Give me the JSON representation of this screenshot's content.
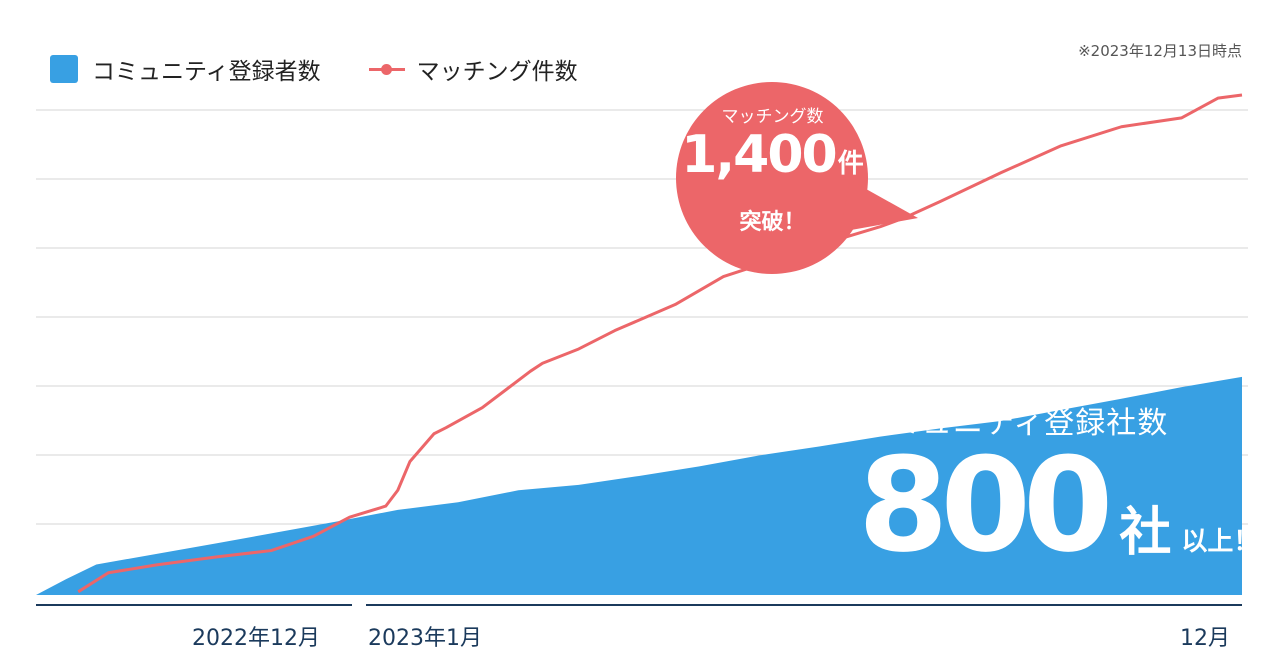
{
  "legend": {
    "registrants_label": "コミュニティ登録者数",
    "matches_label": "マッチング件数"
  },
  "as_of": "※2023年12月13日時点",
  "callout": {
    "line1": "マッチング数",
    "number": "1,400",
    "unit": "件",
    "line3": "突破！"
  },
  "highlight": {
    "title": "コミュニティ登録社数",
    "number": "800",
    "unit": "社",
    "suffix": "以上！"
  },
  "x_labels": {
    "label_2022_12": "2022年12月",
    "label_2023_01": "2023年1月",
    "label_2023_12": "12月"
  },
  "colors": {
    "area": "#38a0e3",
    "line": "#ec6669",
    "grid": "#d4d4d4",
    "axis": "#1b3a5c"
  },
  "chart_data": {
    "type": "area",
    "x_axis": "time (continuous, no tick values shown)",
    "y_axis": "no tick labels shown",
    "grid": true,
    "legend_placement": "top-left",
    "series": [
      {
        "name": "コミュニティ登録者数",
        "type": "area",
        "x": [
          0,
          0.025,
          0.05,
          0.15,
          0.25,
          0.3,
          0.35,
          0.4,
          0.45,
          0.5,
          0.55,
          0.6,
          0.65,
          0.7,
          0.75,
          0.8,
          0.85,
          0.9,
          0.95,
          1.0
        ],
        "values": [
          0,
          50,
          96,
          163,
          232,
          268,
          292,
          330,
          347,
          375,
          405,
          440,
          468,
          499,
          525,
          548,
          583,
          618,
          655,
          687
        ]
      },
      {
        "name": "マッチング件数",
        "type": "line",
        "x": [
          0.035,
          0.06,
          0.1,
          0.15,
          0.195,
          0.23,
          0.26,
          0.29,
          0.3,
          0.31,
          0.33,
          0.34,
          0.37,
          0.41,
          0.42,
          0.45,
          0.48,
          0.53,
          0.57,
          0.6,
          0.65,
          0.7,
          0.72,
          0.75,
          0.8,
          0.85,
          0.9,
          0.95,
          0.98,
          1.0
        ],
        "values": [
          10,
          70,
          95,
          120,
          140,
          185,
          245,
          280,
          330,
          420,
          508,
          527,
          590,
          705,
          730,
          775,
          833,
          915,
          1003,
          1040,
          1103,
          1160,
          1188,
          1240,
          1330,
          1415,
          1475,
          1503,
          1565,
          1575
        ]
      }
    ]
  }
}
